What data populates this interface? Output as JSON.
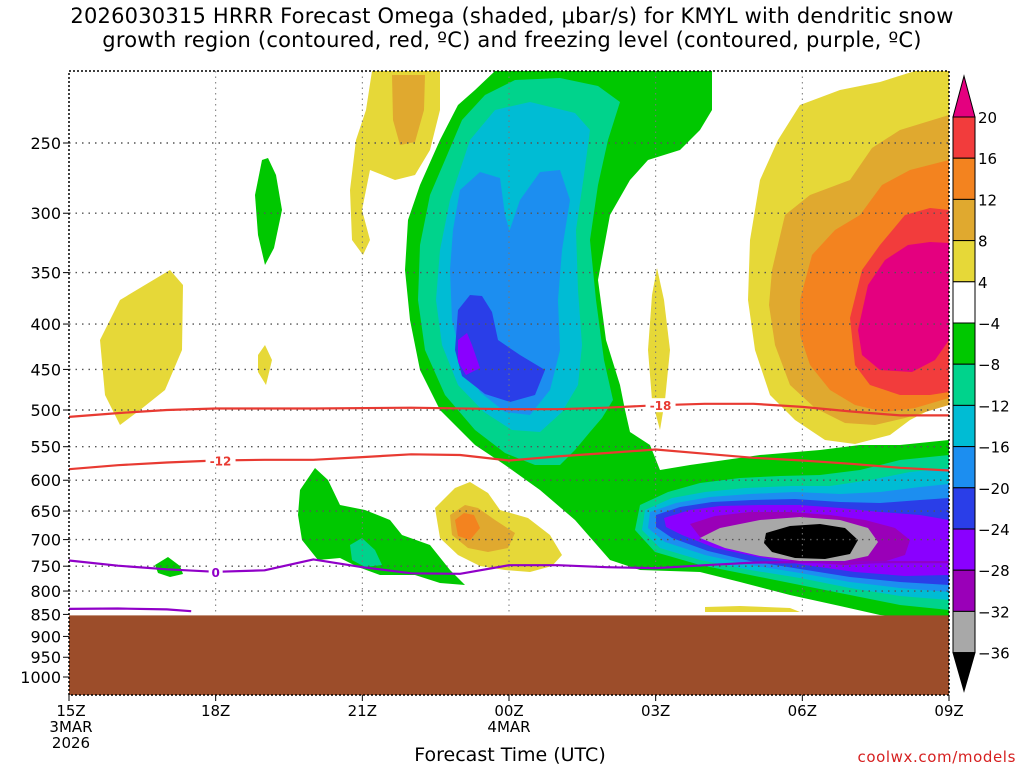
{
  "chart_data": {
    "type": "heatmap",
    "title": "2026030315 HRRR Forecast Omega (shaded, μbar/s) for KMYL with dendritic snow growth region (contoured, red, ºC) and freezing level (contoured, purple, ºC)",
    "title_lines": [
      "2026030315 HRRR Forecast Omega (shaded, μbar/s) for KMYL with dendritic snow",
      "growth region (contoured, red, ºC) and freezing level (contoured, purple, ºC)"
    ],
    "xlabel": "Forecast Time (UTC)",
    "ylabel": "",
    "credit": "coolwx.com/models",
    "x_range_hours": [
      0,
      18
    ],
    "y_range_hpa": [
      200,
      1050
    ],
    "x_ticks": [
      {
        "hour": 0,
        "lines": [
          "15Z",
          "3MAR",
          "2026"
        ]
      },
      {
        "hour": 3,
        "lines": [
          "18Z"
        ]
      },
      {
        "hour": 6,
        "lines": [
          "21Z"
        ]
      },
      {
        "hour": 9,
        "lines": [
          "00Z",
          "4MAR"
        ]
      },
      {
        "hour": 12,
        "lines": [
          "03Z"
        ]
      },
      {
        "hour": 15,
        "lines": [
          "06Z"
        ]
      },
      {
        "hour": 18,
        "lines": [
          "09Z"
        ]
      }
    ],
    "y_ticks": [
      250,
      300,
      350,
      400,
      450,
      500,
      550,
      600,
      650,
      700,
      750,
      800,
      850,
      900,
      950,
      1000
    ],
    "colorbar": {
      "labels": [
        "20",
        "16",
        "12",
        "8",
        "4",
        "−4",
        "−8",
        "−12",
        "−16",
        "−20",
        "−24",
        "−28",
        "−32",
        "−36"
      ],
      "top_color": "#e4007f",
      "bottom_color": "#000000",
      "band_colors": [
        "#f23c3c",
        "#f3831f",
        "#e0a92f",
        "#e6d838",
        "#ffffff",
        "#00c800",
        "#00d38c",
        "#00bcd4",
        "#1c8ef0",
        "#2a3ee8",
        "#8a00ff",
        "#9a00b8",
        "#a8a8a8"
      ]
    },
    "omega_color_levels": {
      "pos_4_8": "#e6d838",
      "pos_8_12": "#e0a92f",
      "pos_12_16": "#f3831f",
      "pos_16_20": "#f23c3c",
      "pos_gt_20": "#e4007f",
      "neg_4_8": "#00c800",
      "neg_8_12": "#00d38c",
      "neg_12_16": "#00bcd4",
      "neg_16_20": "#1c8ef0",
      "neg_20_24": "#2a3ee8",
      "neg_24_28": "#8a00ff",
      "neg_28_32": "#9a00b8",
      "neg_32_36": "#a8a8a8",
      "neg_lt_36": "#000000"
    },
    "terrain_color": "#9c4d2a",
    "terrain_top_hpa": 850,
    "contours": [
      {
        "name": "dgz -18 °C",
        "color": "#e83a32",
        "label": "-18",
        "label_at_hour": 12.1,
        "points": [
          [
            0,
            509
          ],
          [
            1,
            504
          ],
          [
            2,
            500
          ],
          [
            3,
            498
          ],
          [
            5,
            498
          ],
          [
            7,
            497
          ],
          [
            9,
            499
          ],
          [
            10,
            499
          ],
          [
            11,
            497
          ],
          [
            12,
            494
          ],
          [
            13,
            492
          ],
          [
            14,
            492
          ],
          [
            15,
            496
          ],
          [
            16,
            502
          ],
          [
            17,
            507
          ],
          [
            18,
            507
          ]
        ]
      },
      {
        "name": "dgz -12 °C",
        "color": "#e83a32",
        "label": "-12",
        "label_at_hour": 3.1,
        "points": [
          [
            0,
            583
          ],
          [
            1,
            577
          ],
          [
            2,
            573
          ],
          [
            3,
            570
          ],
          [
            4,
            569
          ],
          [
            5,
            569
          ],
          [
            6,
            565
          ],
          [
            7,
            561
          ],
          [
            8,
            562
          ],
          [
            9,
            570
          ],
          [
            10,
            564
          ],
          [
            11,
            559
          ],
          [
            12,
            554
          ],
          [
            13,
            560
          ],
          [
            14,
            566
          ],
          [
            15,
            570
          ],
          [
            16,
            575
          ],
          [
            17,
            581
          ],
          [
            18,
            585
          ]
        ]
      },
      {
        "name": "freezing level 0 °C",
        "color": "#9000c8",
        "label": "0",
        "label_at_hour": 3,
        "points": [
          [
            0,
            739
          ],
          [
            1,
            749
          ],
          [
            2,
            756
          ],
          [
            3,
            761
          ],
          [
            4,
            758
          ],
          [
            5,
            737
          ],
          [
            6,
            752
          ],
          [
            7,
            764
          ],
          [
            8,
            765
          ],
          [
            9,
            748
          ],
          [
            10,
            748
          ],
          [
            11,
            752
          ],
          [
            12,
            754
          ],
          [
            13,
            748
          ],
          [
            14,
            743
          ],
          [
            15,
            742
          ],
          [
            16,
            742
          ],
          [
            17,
            742
          ],
          [
            18,
            742
          ]
        ]
      },
      {
        "name": "freezing level 0 °C (surface)",
        "color": "#9000c8",
        "label": "",
        "label_at_hour": null,
        "points": [
          [
            0,
            838
          ],
          [
            1,
            837
          ],
          [
            2,
            839
          ],
          [
            2.5,
            843
          ]
        ]
      }
    ],
    "omega_features": [
      {
        "name": "positive 4 to 8 near 16Z 400mb",
        "value_band": "pos_4_8",
        "center_hour": 1.4,
        "center_hpa": 400,
        "peak": 6
      },
      {
        "name": "positive max near 22Z 250mb",
        "value_band": "pos_8_12",
        "center_hour": 7,
        "center_hpa": 240,
        "peak": 12
      },
      {
        "name": "ascent core near 23Z 430mb",
        "value_band": "neg_24_28",
        "center_hour": 8,
        "center_hpa": 430,
        "peak": -26
      },
      {
        "name": "positive max near 23Z 690mb",
        "value_band": "pos_8_12",
        "center_hour": 7.5,
        "center_hpa": 690,
        "peak": 10
      },
      {
        "name": "strong ascent core near 06Z 720mb",
        "value_band": "neg_lt_36",
        "center_hour": 15,
        "center_hpa": 720,
        "peak": -38
      },
      {
        "name": "positive max near 08Z 380mb",
        "value_band": "pos_gt_20",
        "center_hour": 17.3,
        "center_hpa": 380,
        "peak": 21
      }
    ]
  }
}
